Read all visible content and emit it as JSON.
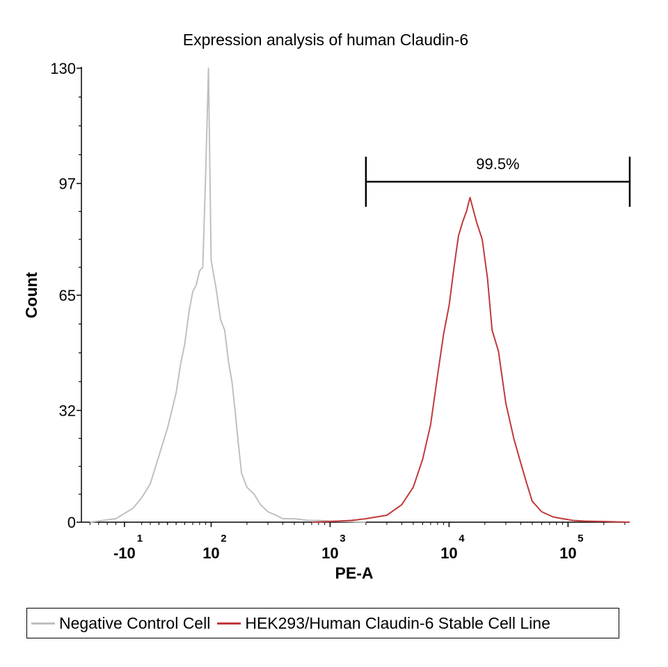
{
  "chart_data": {
    "type": "line",
    "title": "Expression analysis of human Claudin-6",
    "xlabel": "PE-A",
    "ylabel": "Count",
    "xscale": "biexponential",
    "x_tick_labels": [
      {
        "base": "-10",
        "exp": "1"
      },
      {
        "base": "10",
        "exp": "2"
      },
      {
        "base": "10",
        "exp": "3"
      },
      {
        "base": "10",
        "exp": "4"
      },
      {
        "base": "10",
        "exp": "5"
      }
    ],
    "y_ticks": [
      0,
      32,
      65,
      97,
      130
    ],
    "ylim": [
      0,
      130
    ],
    "gate": {
      "label": "99.5%",
      "x_range": [
        2000,
        330000
      ]
    },
    "series": [
      {
        "name": "Negative Control Cell",
        "color": "#c0c0c0",
        "x": [
          -50,
          -20,
          0,
          10,
          20,
          30,
          40,
          50,
          55,
          60,
          65,
          70,
          75,
          80,
          85,
          90,
          95,
          100,
          110,
          120,
          130,
          140,
          150,
          160,
          170,
          180,
          200,
          230,
          260,
          300,
          350,
          400,
          500,
          650,
          800,
          1000,
          1400,
          2000
        ],
        "y": [
          0,
          1,
          4,
          7,
          11,
          19,
          27,
          37,
          45,
          51,
          60,
          66,
          68,
          72,
          73,
          100,
          130,
          75,
          67,
          58,
          55,
          46,
          40,
          31,
          22,
          14,
          10,
          8,
          5,
          3,
          2,
          1,
          1,
          0.5,
          0.5,
          0.3,
          0.2,
          0
        ]
      },
      {
        "name": "HEK293/Human Claudin-6 Stable Cell Line",
        "color": "#c0393b",
        "x": [
          700,
          1000,
          1500,
          2000,
          3000,
          4000,
          5000,
          6000,
          7000,
          8000,
          9000,
          10000,
          11000,
          12000,
          13000,
          14000,
          15000,
          17000,
          19000,
          21000,
          23000,
          26000,
          30000,
          35000,
          40000,
          45000,
          50000,
          60000,
          75000,
          90000,
          110000,
          140000,
          200000,
          330000
        ],
        "y": [
          0,
          0.2,
          0.5,
          1,
          2,
          5,
          10,
          18,
          28,
          42,
          54,
          62,
          73,
          82,
          86,
          89,
          93,
          86,
          81,
          70,
          55,
          49,
          34,
          24,
          17,
          11,
          6,
          3,
          1.5,
          1,
          0.5,
          0.3,
          0.2,
          0
        ]
      }
    ]
  }
}
